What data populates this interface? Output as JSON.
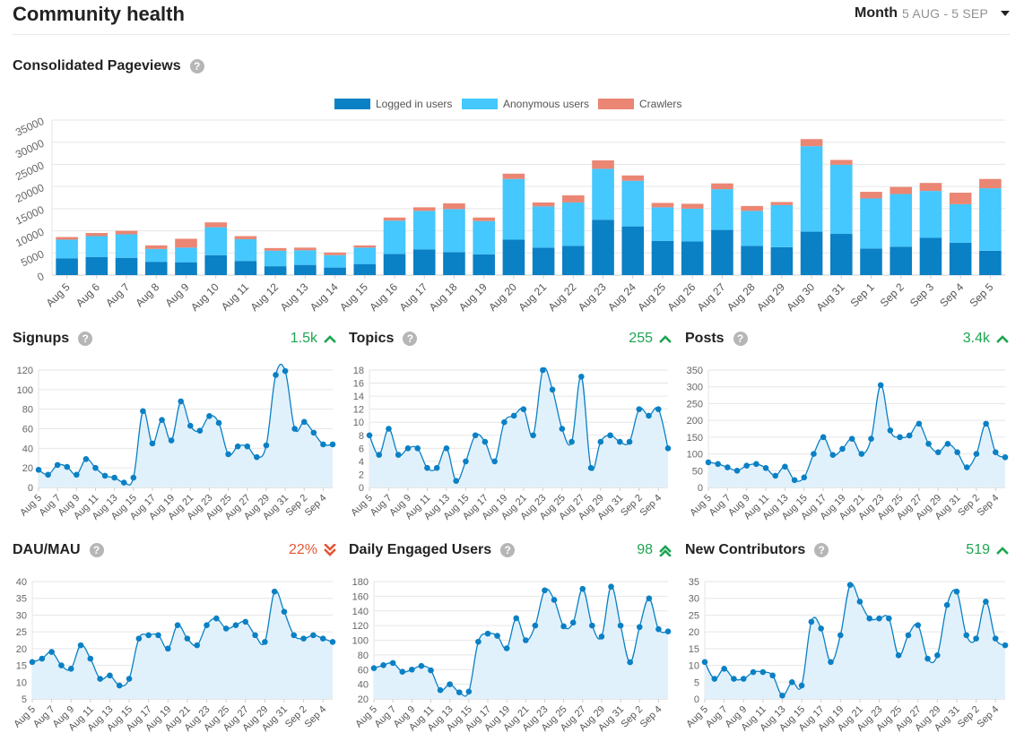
{
  "header": {
    "title": "Community health",
    "period_label": "Month",
    "period_range": "5 AUG - 5 SEP"
  },
  "colors": {
    "logged": "#0a80c5",
    "anonymous": "#44c8fd",
    "crawlers": "#ea8673",
    "line": "#0a80c5",
    "area": "#e1f1fb",
    "up": "#1ca551",
    "down": "#e45735"
  },
  "pageviews": {
    "title": "Consolidated Pageviews",
    "chart_data": {
      "type": "bar",
      "stacked": true,
      "categories": [
        "Aug 5",
        "Aug 6",
        "Aug 7",
        "Aug 8",
        "Aug 9",
        "Aug 10",
        "Aug 11",
        "Aug 12",
        "Aug 13",
        "Aug 14",
        "Aug 15",
        "Aug 16",
        "Aug 17",
        "Aug 18",
        "Aug 19",
        "Aug 20",
        "Aug 21",
        "Aug 22",
        "Aug 23",
        "Aug 24",
        "Aug 25",
        "Aug 26",
        "Aug 27",
        "Aug 28",
        "Aug 29",
        "Aug 30",
        "Aug 31",
        "Sep 1",
        "Sep 2",
        "Sep 3",
        "Sep 4",
        "Sep 5"
      ],
      "series": [
        {
          "name": "Logged in users",
          "values": [
            3800,
            4100,
            3900,
            3000,
            2900,
            4500,
            3200,
            2000,
            2300,
            1700,
            2500,
            4800,
            5800,
            5200,
            4700,
            8000,
            6200,
            6600,
            12500,
            11000,
            7700,
            7600,
            10200,
            6600,
            6300,
            9800,
            9300,
            6000,
            6400,
            8400,
            7300,
            5500
          ]
        },
        {
          "name": "Anonymous users",
          "values": [
            4200,
            4700,
            5300,
            2900,
            3300,
            6300,
            4900,
            3500,
            3300,
            2800,
            3700,
            7500,
            8700,
            9700,
            7500,
            13700,
            9300,
            9800,
            11500,
            10300,
            7600,
            7400,
            9200,
            7900,
            9500,
            19300,
            15600,
            11300,
            11900,
            10600,
            8700,
            14100
          ]
        },
        {
          "name": "Crawlers",
          "values": [
            600,
            700,
            800,
            800,
            2000,
            1100,
            700,
            600,
            600,
            600,
            500,
            700,
            800,
            1300,
            800,
            1200,
            900,
            1600,
            1900,
            1200,
            1000,
            1100,
            1300,
            1100,
            700,
            1600,
            1100,
            1500,
            1600,
            1800,
            2600,
            2100
          ]
        }
      ],
      "ylim": [
        0,
        35000
      ],
      "yticks": [
        0,
        5000,
        10000,
        15000,
        20000,
        25000,
        30000,
        35000
      ],
      "legend_position": "top-center",
      "grid": true
    }
  },
  "small_charts": [
    {
      "id": "signups",
      "title": "Signups",
      "trend_value": "1.5k",
      "trend": "up",
      "chart_data": {
        "type": "area",
        "x": [
          "Aug 5",
          "Aug 6",
          "Aug 7",
          "Aug 8",
          "Aug 9",
          "Aug 10",
          "Aug 11",
          "Aug 12",
          "Aug 13",
          "Aug 14",
          "Aug 15",
          "Aug 16",
          "Aug 17",
          "Aug 18",
          "Aug 19",
          "Aug 20",
          "Aug 21",
          "Aug 22",
          "Aug 23",
          "Aug 24",
          "Aug 25",
          "Aug 26",
          "Aug 27",
          "Aug 28",
          "Aug 29",
          "Aug 30",
          "Aug 31",
          "Sep 1",
          "Sep 2",
          "Sep 3",
          "Sep 4",
          "Sep 5"
        ],
        "values": [
          18,
          13,
          23,
          21,
          13,
          29,
          20,
          12,
          10,
          5,
          10,
          78,
          45,
          69,
          48,
          88,
          63,
          58,
          73,
          66,
          34,
          42,
          42,
          31,
          43,
          115,
          119,
          60,
          67,
          56,
          44,
          44
        ],
        "ylim": [
          0,
          120
        ],
        "yticks": [
          0,
          20,
          40,
          60,
          80,
          100,
          120
        ],
        "xtick_labels": [
          "Aug 5",
          "Aug 7",
          "Aug 9",
          "Aug 11",
          "Aug 13",
          "Aug 15",
          "Aug 17",
          "Aug 19",
          "Aug 21",
          "Aug 23",
          "Aug 25",
          "Aug 27",
          "Aug 29",
          "Aug 31",
          "Sep 2",
          "Sep 4"
        ]
      }
    },
    {
      "id": "topics",
      "title": "Topics",
      "trend_value": "255",
      "trend": "up",
      "chart_data": {
        "type": "area",
        "x": [
          "Aug 5",
          "Aug 6",
          "Aug 7",
          "Aug 8",
          "Aug 9",
          "Aug 10",
          "Aug 11",
          "Aug 12",
          "Aug 13",
          "Aug 14",
          "Aug 15",
          "Aug 16",
          "Aug 17",
          "Aug 18",
          "Aug 19",
          "Aug 20",
          "Aug 21",
          "Aug 22",
          "Aug 23",
          "Aug 24",
          "Aug 25",
          "Aug 26",
          "Aug 27",
          "Aug 28",
          "Aug 29",
          "Aug 30",
          "Aug 31",
          "Sep 1",
          "Sep 2",
          "Sep 3",
          "Sep 4",
          "Sep 5"
        ],
        "values": [
          8,
          5,
          9,
          5,
          6,
          6,
          3,
          3,
          6,
          1,
          4,
          8,
          7,
          4,
          10,
          11,
          12,
          8,
          18,
          15,
          9,
          7,
          17,
          3,
          7,
          8,
          7,
          7,
          12,
          11,
          12,
          6
        ],
        "ylim": [
          0,
          18
        ],
        "yticks": [
          0,
          2,
          4,
          6,
          8,
          10,
          12,
          14,
          16,
          18
        ],
        "xtick_labels": [
          "Aug 5",
          "Aug 7",
          "Aug 9",
          "Aug 11",
          "Aug 13",
          "Aug 15",
          "Aug 17",
          "Aug 19",
          "Aug 21",
          "Aug 23",
          "Aug 25",
          "Aug 27",
          "Aug 29",
          "Aug 31",
          "Sep 2",
          "Sep 4"
        ]
      }
    },
    {
      "id": "posts",
      "title": "Posts",
      "trend_value": "3.4k",
      "trend": "up",
      "chart_data": {
        "type": "area",
        "x": [
          "Aug 5",
          "Aug 6",
          "Aug 7",
          "Aug 8",
          "Aug 9",
          "Aug 10",
          "Aug 11",
          "Aug 12",
          "Aug 13",
          "Aug 14",
          "Aug 15",
          "Aug 16",
          "Aug 17",
          "Aug 18",
          "Aug 19",
          "Aug 20",
          "Aug 21",
          "Aug 22",
          "Aug 23",
          "Aug 24",
          "Aug 25",
          "Aug 26",
          "Aug 27",
          "Aug 28",
          "Aug 29",
          "Aug 30",
          "Aug 31",
          "Sep 1",
          "Sep 2",
          "Sep 3",
          "Sep 4",
          "Sep 5"
        ],
        "values": [
          75,
          70,
          60,
          50,
          65,
          70,
          58,
          35,
          62,
          22,
          30,
          100,
          150,
          97,
          115,
          145,
          100,
          145,
          305,
          170,
          150,
          155,
          190,
          130,
          105,
          130,
          105,
          60,
          100,
          190,
          105,
          90
        ],
        "ylim": [
          0,
          350
        ],
        "yticks": [
          0,
          50,
          100,
          150,
          200,
          250,
          300,
          350
        ],
        "xtick_labels": [
          "Aug 5",
          "Aug 7",
          "Aug 9",
          "Aug 11",
          "Aug 13",
          "Aug 15",
          "Aug 17",
          "Aug 19",
          "Aug 21",
          "Aug 23",
          "Aug 25",
          "Aug 27",
          "Aug 29",
          "Aug 31",
          "Sep 2",
          "Sep 4"
        ]
      }
    },
    {
      "id": "dau-mau",
      "title": "DAU/MAU",
      "trend_value": "22%",
      "trend": "down",
      "chart_data": {
        "type": "area",
        "x": [
          "Aug 5",
          "Aug 6",
          "Aug 7",
          "Aug 8",
          "Aug 9",
          "Aug 10",
          "Aug 11",
          "Aug 12",
          "Aug 13",
          "Aug 14",
          "Aug 15",
          "Aug 16",
          "Aug 17",
          "Aug 18",
          "Aug 19",
          "Aug 20",
          "Aug 21",
          "Aug 22",
          "Aug 23",
          "Aug 24",
          "Aug 25",
          "Aug 26",
          "Aug 27",
          "Aug 28",
          "Aug 29",
          "Aug 30",
          "Aug 31",
          "Sep 1",
          "Sep 2",
          "Sep 3",
          "Sep 4",
          "Sep 5"
        ],
        "values": [
          16,
          17,
          19,
          15,
          14,
          21,
          17,
          11,
          12,
          9,
          11,
          23,
          24,
          24,
          20,
          27,
          23,
          21,
          27,
          29,
          26,
          27,
          28,
          24,
          22,
          37,
          31,
          24,
          23,
          24,
          23,
          22
        ],
        "ylim": [
          5,
          40
        ],
        "yticks": [
          5,
          10,
          15,
          20,
          25,
          30,
          35,
          40
        ],
        "xtick_labels": [
          "Aug 5",
          "Aug 7",
          "Aug 9",
          "Aug 11",
          "Aug 13",
          "Aug 15",
          "Aug 17",
          "Aug 19",
          "Aug 21",
          "Aug 23",
          "Aug 25",
          "Aug 27",
          "Aug 29",
          "Aug 31",
          "Sep 2",
          "Sep 4"
        ]
      }
    },
    {
      "id": "daily-engaged-users",
      "title": "Daily Engaged Users",
      "trend_value": "98",
      "trend": "up-strong",
      "chart_data": {
        "type": "area",
        "x": [
          "Aug 5",
          "Aug 6",
          "Aug 7",
          "Aug 8",
          "Aug 9",
          "Aug 10",
          "Aug 11",
          "Aug 12",
          "Aug 13",
          "Aug 14",
          "Aug 15",
          "Aug 16",
          "Aug 17",
          "Aug 18",
          "Aug 19",
          "Aug 20",
          "Aug 21",
          "Aug 22",
          "Aug 23",
          "Aug 24",
          "Aug 25",
          "Aug 26",
          "Aug 27",
          "Aug 28",
          "Aug 29",
          "Aug 30",
          "Aug 31",
          "Sep 1",
          "Sep 2",
          "Sep 3",
          "Sep 4",
          "Sep 5"
        ],
        "values": [
          62,
          66,
          69,
          57,
          60,
          65,
          59,
          32,
          40,
          29,
          30,
          98,
          109,
          106,
          89,
          130,
          100,
          120,
          168,
          155,
          119,
          124,
          170,
          120,
          105,
          173,
          120,
          70,
          118,
          157,
          115,
          112
        ],
        "ylim": [
          20,
          180
        ],
        "yticks": [
          20,
          40,
          60,
          80,
          100,
          120,
          140,
          160,
          180
        ],
        "xtick_labels": [
          "Aug 5",
          "Aug 7",
          "Aug 9",
          "Aug 11",
          "Aug 13",
          "Aug 15",
          "Aug 17",
          "Aug 19",
          "Aug 21",
          "Aug 23",
          "Aug 25",
          "Aug 27",
          "Aug 29",
          "Aug 31",
          "Sep 2",
          "Sep 4"
        ]
      }
    },
    {
      "id": "new-contributors",
      "title": "New Contributors",
      "trend_value": "519",
      "trend": "up",
      "chart_data": {
        "type": "area",
        "x": [
          "Aug 5",
          "Aug 6",
          "Aug 7",
          "Aug 8",
          "Aug 9",
          "Aug 10",
          "Aug 11",
          "Aug 12",
          "Aug 13",
          "Aug 14",
          "Aug 15",
          "Aug 16",
          "Aug 17",
          "Aug 18",
          "Aug 19",
          "Aug 20",
          "Aug 21",
          "Aug 22",
          "Aug 23",
          "Aug 24",
          "Aug 25",
          "Aug 26",
          "Aug 27",
          "Aug 28",
          "Aug 29",
          "Aug 30",
          "Aug 31",
          "Sep 1",
          "Sep 2",
          "Sep 3",
          "Sep 4",
          "Sep 5"
        ],
        "values": [
          11,
          6,
          9,
          6,
          6,
          8,
          8,
          7,
          1,
          5,
          4,
          23,
          21,
          11,
          19,
          34,
          29,
          24,
          24,
          24,
          13,
          19,
          22,
          12,
          13,
          28,
          32,
          19,
          18,
          29,
          18,
          16
        ],
        "ylim": [
          0,
          35
        ],
        "yticks": [
          0,
          5,
          10,
          15,
          20,
          25,
          30,
          35
        ],
        "xtick_labels": [
          "Aug 5",
          "Aug 7",
          "Aug 9",
          "Aug 11",
          "Aug 13",
          "Aug 15",
          "Aug 17",
          "Aug 19",
          "Aug 21",
          "Aug 23",
          "Aug 25",
          "Aug 27",
          "Aug 29",
          "Aug 31",
          "Sep 2",
          "Sep 4"
        ]
      }
    }
  ]
}
